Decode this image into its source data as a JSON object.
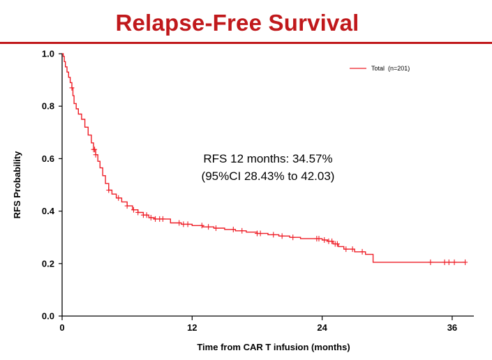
{
  "slide": {
    "title": "Relapse-Free Survival"
  },
  "colors": {
    "accent": "#c0181b",
    "curve": "#ee1c25",
    "axis": "#000000"
  },
  "chart_data": {
    "type": "line",
    "title": "Relapse-Free Survival",
    "xlabel": "Time from CAR T infusion (months)",
    "ylabel": "RFS Probability",
    "xlim": [
      0,
      38
    ],
    "ylim": [
      0,
      1
    ],
    "xticks": [
      0,
      12,
      24,
      36
    ],
    "yticks": [
      0.0,
      0.2,
      0.4,
      0.6,
      0.8,
      1.0
    ],
    "xtick_labels": [
      "0",
      "12",
      "24",
      "36"
    ],
    "ytick_labels": [
      "0.0",
      "0.2",
      "0.4",
      "0.6",
      "0.8",
      "1.0"
    ],
    "grid": false,
    "legend": {
      "position": "top-right",
      "entries": [
        "Total  (n=201)"
      ]
    },
    "annotations": [
      "RFS 12 months: 34.57%",
      "(95%CI 28.43% to 42.03)"
    ],
    "series": [
      {
        "name": "Total  (n=201)",
        "step": true,
        "x": [
          0,
          0.1,
          0.2,
          0.3,
          0.45,
          0.6,
          0.75,
          0.9,
          1.0,
          1.1,
          1.3,
          1.5,
          1.8,
          2.1,
          2.4,
          2.7,
          2.9,
          3.1,
          3.3,
          3.5,
          3.75,
          4.0,
          4.3,
          4.6,
          5.0,
          5.5,
          6.0,
          6.5,
          7.0,
          7.5,
          8.0,
          8.5,
          9.0,
          10.0,
          11.0,
          12.0,
          13.0,
          14.0,
          15.0,
          16.0,
          17.0,
          18.0,
          19.0,
          20.0,
          21.0,
          22.0,
          23.0,
          24.0,
          24.5,
          25.0,
          25.5,
          26.0,
          27.0,
          28.0,
          28.7,
          31.0,
          34.0,
          36.0,
          37.2
        ],
        "y": [
          1.0,
          0.99,
          0.97,
          0.95,
          0.93,
          0.91,
          0.89,
          0.87,
          0.84,
          0.81,
          0.79,
          0.77,
          0.75,
          0.72,
          0.69,
          0.66,
          0.635,
          0.615,
          0.59,
          0.565,
          0.535,
          0.505,
          0.48,
          0.465,
          0.45,
          0.435,
          0.42,
          0.405,
          0.395,
          0.385,
          0.375,
          0.37,
          0.37,
          0.355,
          0.35,
          0.345,
          0.34,
          0.335,
          0.33,
          0.325,
          0.32,
          0.315,
          0.31,
          0.305,
          0.3,
          0.295,
          0.295,
          0.29,
          0.285,
          0.275,
          0.265,
          0.255,
          0.245,
          0.235,
          0.205,
          0.205,
          0.205,
          0.205,
          0.205
        ]
      }
    ],
    "censor_x": [
      0.9,
      2.9,
      3.0,
      3.1,
      4.3,
      5.2,
      6.0,
      6.6,
      7.0,
      7.5,
      7.8,
      8.2,
      8.6,
      9.0,
      9.3,
      10.8,
      11.2,
      11.6,
      12.9,
      13.5,
      14.2,
      15.8,
      16.6,
      18.0,
      18.3,
      19.5,
      20.3,
      21.3,
      23.5,
      23.7,
      24.2,
      24.6,
      24.9,
      25.2,
      25.4,
      26.2,
      26.8,
      27.7,
      34.0,
      35.3,
      35.7,
      36.2,
      37.2
    ]
  }
}
